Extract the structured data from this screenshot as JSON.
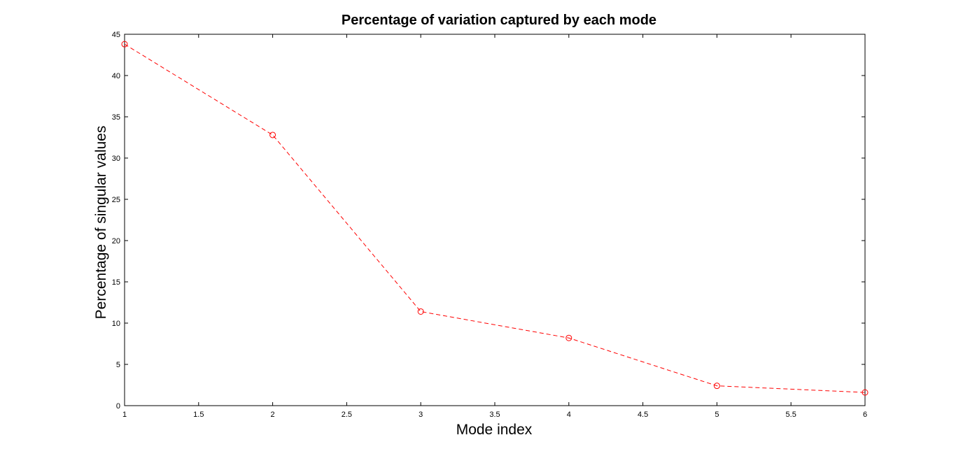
{
  "chart_data": {
    "type": "line",
    "title": "Percentage of variation captured by each mode",
    "xlabel": "Mode index",
    "ylabel": "Percentage of singular values",
    "xlim": [
      1,
      6
    ],
    "ylim": [
      0,
      45
    ],
    "xticks": [
      "1",
      "1.5",
      "2",
      "2.5",
      "3",
      "3.5",
      "4",
      "4.5",
      "5",
      "5.5",
      "6"
    ],
    "yticks": [
      "0",
      "5",
      "10",
      "15",
      "20",
      "25",
      "30",
      "35",
      "40",
      "45"
    ],
    "grid": false,
    "series": [
      {
        "x": [
          1,
          2,
          3,
          4,
          5,
          6
        ],
        "values": [
          43.8,
          32.8,
          11.4,
          8.2,
          2.4,
          1.6
        ],
        "color": "#ff0000",
        "line_style": "dashed",
        "marker": "circle"
      }
    ]
  }
}
